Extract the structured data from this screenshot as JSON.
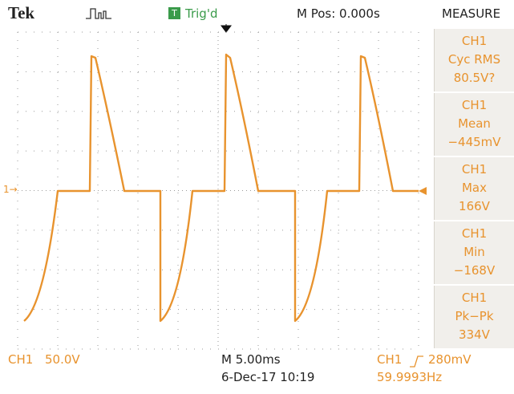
{
  "header": {
    "brand": "Tek",
    "trigger_badge": "T",
    "trigger_status": "Trig'd",
    "position": "M Pos: 0.000s"
  },
  "channel_marker": "1",
  "measure": {
    "title": "MEASURE",
    "items": [
      {
        "channel": "CH1",
        "label": "Cyc RMS",
        "value": "80.5V?"
      },
      {
        "channel": "CH1",
        "label": "Mean",
        "value": "−445mV"
      },
      {
        "channel": "CH1",
        "label": "Max",
        "value": "166V"
      },
      {
        "channel": "CH1",
        "label": "Min",
        "value": "−168V"
      },
      {
        "channel": "CH1",
        "label": "Pk−Pk",
        "value": "334V"
      }
    ]
  },
  "footer": {
    "channel": "CH1",
    "scale": "50.0V",
    "timebase": "M 5.00ms",
    "datetime": "6-Dec-17 10:19",
    "trigger_source": "CH1",
    "trigger_level": "280mV",
    "frequency": "59.9993Hz"
  }
}
